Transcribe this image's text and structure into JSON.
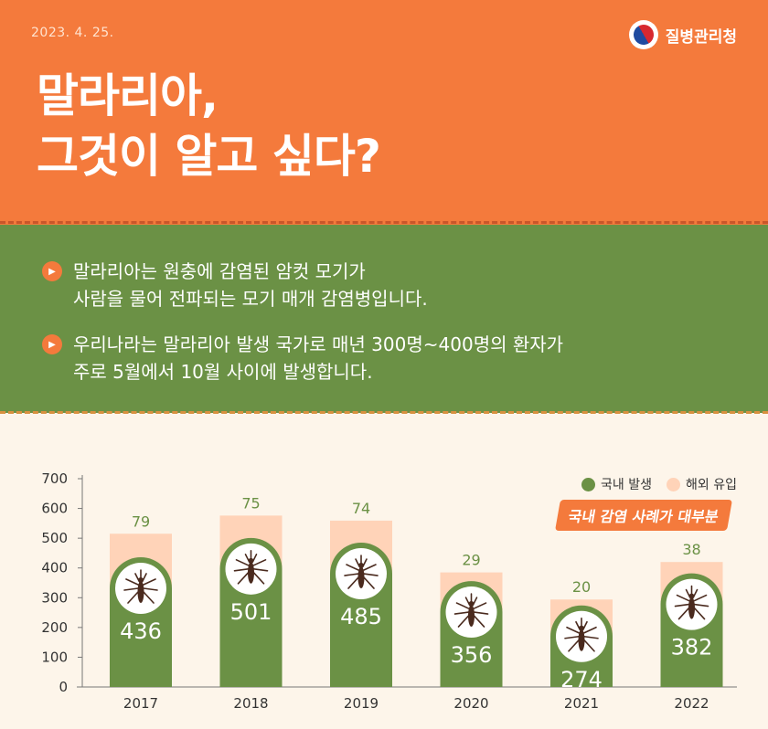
{
  "header": {
    "date": "2023. 4. 25.",
    "agency": "질병관리청",
    "title_line1": "말라리아,",
    "title_line2": "그것이 알고 싶다?"
  },
  "info": {
    "bullet1": "말라리아는 원충에 감염된 암컷 모기가\n사람을 물어 전파되는 모기 매개 감염병입니다.",
    "bullet2": "우리나라는 말라리아 발생 국가로 매년 300명~400명의 환자가\n주로 5월에서 10월 사이에 발생합니다."
  },
  "legend": {
    "domestic": "국내 발생",
    "overseas": "해외 유입"
  },
  "highlight": "국내 감염 사례가 대부분",
  "colors": {
    "domestic": "#6b9145",
    "overseas": "#ffd3b8",
    "accent": "#f47a3c"
  },
  "chart_data": {
    "type": "bar",
    "stacked": true,
    "categories": [
      "2017",
      "2018",
      "2019",
      "2020",
      "2021",
      "2022"
    ],
    "series": [
      {
        "name": "국내 발생",
        "values": [
          436,
          501,
          485,
          356,
          274,
          382
        ]
      },
      {
        "name": "해외 유입",
        "values": [
          79,
          75,
          74,
          29,
          20,
          38
        ]
      }
    ],
    "yticks": [
      "0",
      "100",
      "200",
      "300",
      "400",
      "500",
      "600",
      "700"
    ],
    "ylim": [
      0,
      700
    ],
    "legend_position": "top-right"
  }
}
